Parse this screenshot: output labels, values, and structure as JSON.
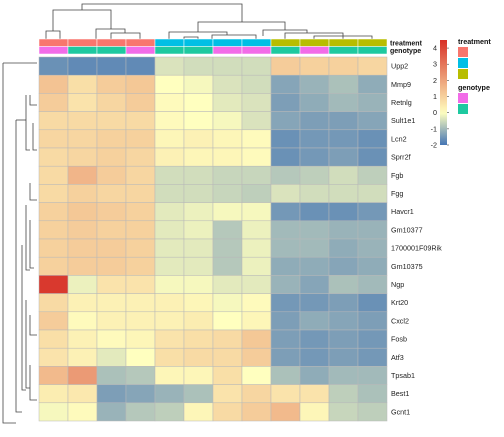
{
  "chart_data": {
    "type": "heatmap",
    "rows": [
      "Upp2",
      "Mmp9",
      "Retnlg",
      "Sult1e1",
      "Lcn2",
      "Sprr2f",
      "Fgb",
      "Fgg",
      "Havcr1",
      "Gm10377",
      "1700001F09Rik",
      "Gm10375",
      "Ngp",
      "Krt20",
      "Cxcl2",
      "Fosb",
      "Atf3",
      "Tpsab1",
      "Best1",
      "Gcnt1"
    ],
    "columns": 12,
    "values": [
      [
        -1.6,
        -1.7,
        -1.7,
        -1.7,
        -0.4,
        -0.5,
        -0.5,
        -0.5,
        1.1,
        1.0,
        1.0,
        0.9
      ],
      [
        1.3,
        0.7,
        1.1,
        1.2,
        0.0,
        -0.1,
        -0.4,
        -0.5,
        -1.3,
        -1.1,
        -0.9,
        -1.2
      ],
      [
        1.1,
        0.6,
        0.9,
        1.1,
        0.1,
        0.0,
        -0.3,
        -0.4,
        -1.4,
        -1.2,
        -1.0,
        -1.1
      ],
      [
        0.8,
        0.8,
        0.8,
        0.8,
        0.1,
        0.0,
        -0.1,
        -0.4,
        -1.3,
        -1.4,
        -1.4,
        -1.3
      ],
      [
        0.9,
        0.9,
        1.0,
        1.0,
        0.2,
        0.3,
        0.2,
        0.1,
        -1.6,
        -1.5,
        -1.5,
        -1.6
      ],
      [
        0.8,
        0.9,
        1.0,
        0.9,
        0.3,
        0.2,
        0.2,
        0.1,
        -1.6,
        -1.5,
        -1.4,
        -1.6
      ],
      [
        0.8,
        1.6,
        1.1,
        0.9,
        -0.5,
        -0.5,
        -0.6,
        -0.6,
        -0.8,
        -0.7,
        -0.5,
        -0.7
      ],
      [
        0.8,
        1.0,
        0.9,
        0.9,
        -0.5,
        -0.5,
        -0.6,
        -0.7,
        -0.4,
        -0.5,
        -0.5,
        -0.5
      ],
      [
        1.0,
        1.2,
        1.1,
        1.0,
        -0.3,
        -0.2,
        -0.1,
        -0.1,
        -1.5,
        -1.6,
        -1.6,
        -1.5
      ],
      [
        1.0,
        1.1,
        1.0,
        1.0,
        -0.3,
        -0.2,
        -0.8,
        -0.2,
        -1.0,
        -1.0,
        -1.1,
        -1.1
      ],
      [
        1.0,
        1.1,
        1.1,
        1.0,
        -0.3,
        -0.3,
        -0.8,
        -0.2,
        -1.0,
        -1.0,
        -1.2,
        -1.1
      ],
      [
        1.0,
        1.1,
        1.1,
        1.0,
        -0.3,
        -0.3,
        -0.8,
        -0.2,
        -1.2,
        -1.2,
        -1.3,
        -1.2
      ],
      [
        4.3,
        -0.2,
        0.6,
        0.6,
        -0.1,
        -0.1,
        -0.3,
        -0.3,
        -1.1,
        -1.3,
        -0.9,
        -1.0
      ],
      [
        0.8,
        0.3,
        0.3,
        0.3,
        0.3,
        0.2,
        -0.1,
        0.1,
        -1.5,
        -1.5,
        -1.4,
        -1.6
      ],
      [
        1.1,
        0.1,
        0.3,
        0.3,
        0.3,
        0.4,
        0.0,
        0.2,
        -1.4,
        -1.2,
        -1.3,
        -1.4
      ],
      [
        0.7,
        0.3,
        0.1,
        0.2,
        0.6,
        0.7,
        0.8,
        1.2,
        -1.4,
        -1.5,
        -1.4,
        -1.5
      ],
      [
        0.6,
        0.3,
        -0.3,
        0.0,
        0.7,
        0.8,
        0.8,
        1.1,
        -1.4,
        -1.5,
        -1.4,
        -1.5
      ],
      [
        1.5,
        2.2,
        -0.9,
        -0.8,
        0.2,
        0.2,
        0.7,
        0.0,
        -0.9,
        -1.2,
        -1.0,
        -1.0
      ],
      [
        0.4,
        0.5,
        -1.4,
        -1.3,
        -1.1,
        -0.9,
        0.6,
        0.9,
        0.6,
        0.6,
        -0.7,
        -0.9
      ],
      [
        -0.1,
        0.1,
        -1.1,
        -0.8,
        -0.7,
        0.2,
        0.8,
        1.1,
        1.5,
        0.2,
        -0.6,
        -0.7
      ]
    ],
    "color_scale": {
      "min": -2,
      "max": 4.5,
      "colors": [
        "#4575b4",
        "#ffffbf",
        "#d73027"
      ],
      "ticks": [
        4,
        3,
        2,
        1,
        0,
        -1,
        -2
      ]
    },
    "annotation_tracks": [
      {
        "name": "treatment",
        "column_groups": [
          0,
          0,
          0,
          0,
          1,
          1,
          1,
          1,
          2,
          2,
          2,
          2
        ],
        "legend_colors": [
          "#f8766d",
          "#00bfe5",
          "#b8bd00"
        ]
      },
      {
        "name": "genotype",
        "column_groups": [
          0,
          1,
          1,
          0,
          1,
          1,
          0,
          0,
          1,
          0,
          1,
          1
        ],
        "legend_colors": [
          "#f26ce8",
          "#1ec9a0"
        ]
      }
    ],
    "row_dendrogram": true,
    "column_dendrogram": true,
    "legend_placement": "top-right"
  }
}
